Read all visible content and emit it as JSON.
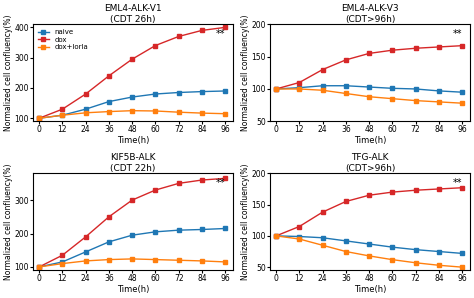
{
  "chart_data": [
    {
      "type": "line",
      "title": "EML4-ALK-V1\n(CDT 26h)",
      "x_label": "Time(h)",
      "y_label": "Normalized cell confluency(%)",
      "x": [
        0,
        12,
        24,
        36,
        48,
        60,
        72,
        84,
        96
      ],
      "xlim": [
        -3,
        100
      ],
      "xticks": [
        0,
        12,
        24,
        36,
        48,
        60,
        72,
        84,
        96
      ],
      "ylim": [
        90,
        410
      ],
      "yticks": [
        100,
        200,
        300,
        400
      ],
      "marker": "square",
      "line_style": "solid",
      "legend": "upper left",
      "series": [
        {
          "name": "naive",
          "color": "#1f77b4",
          "values": [
            100,
            110,
            130,
            155,
            170,
            180,
            185,
            188,
            190
          ],
          "error": [
            2.5,
            2.5,
            2.5,
            2.5,
            2.5,
            2.5,
            2.5,
            2.5,
            2.5
          ]
        },
        {
          "name": "dox",
          "color": "#d62728",
          "values": [
            100,
            130,
            180,
            240,
            295,
            340,
            370,
            390,
            400
          ],
          "error": [
            2.5,
            2.5,
            2.5,
            2.5,
            2.5,
            2.5,
            2.5,
            2.5,
            2.5
          ]
        },
        {
          "name": "dox+lorla",
          "color": "#ff7f0e",
          "values": [
            100,
            110,
            118,
            122,
            125,
            124,
            120,
            117,
            115
          ],
          "error": [
            2.5,
            2.5,
            2.5,
            2.5,
            2.5,
            2.5,
            2.5,
            2.5,
            2.5
          ]
        }
      ],
      "annotations": [
        {
          "text": "**",
          "x": 96,
          "y": 394
        }
      ]
    },
    {
      "type": "line",
      "title": "EML4-ALK-V3\n(CDT>96h)",
      "x_label": "Time(h)",
      "y_label": "Normalized cell confluency(%)",
      "x": [
        0,
        12,
        24,
        36,
        48,
        60,
        72,
        84,
        96
      ],
      "xlim": [
        -3,
        100
      ],
      "xticks": [
        0,
        12,
        24,
        36,
        48,
        60,
        72,
        84,
        96
      ],
      "ylim": [
        50,
        200
      ],
      "yticks": [
        50,
        100,
        150,
        200
      ],
      "marker": "square",
      "line_style": "solid",
      "series": [
        {
          "name": "naive",
          "color": "#1f77b4",
          "values": [
            100,
            102,
            105,
            105,
            103,
            101,
            100,
            97,
            95
          ],
          "error": [
            2.5,
            2.5,
            2.5,
            2.5,
            2.5,
            2.5,
            2.5,
            2.5,
            2.5
          ]
        },
        {
          "name": "dox",
          "color": "#d62728",
          "values": [
            100,
            110,
            130,
            145,
            155,
            160,
            163,
            165,
            167
          ],
          "error": [
            2.5,
            2.5,
            2.5,
            2.5,
            2.5,
            2.5,
            2.5,
            2.5,
            2.5
          ]
        },
        {
          "name": "dox+lorla",
          "color": "#ff7f0e",
          "values": [
            100,
            100,
            98,
            93,
            88,
            85,
            82,
            80,
            78
          ],
          "error": [
            2.5,
            2.5,
            2.5,
            2.5,
            2.5,
            2.5,
            2.5,
            2.5,
            2.5
          ]
        }
      ],
      "annotations": [
        {
          "text": "**",
          "x": 96,
          "y": 192.5
        }
      ]
    },
    {
      "type": "line",
      "title": "KIF5B-ALK\n(CDT 22h)",
      "x_label": "Time(h)",
      "y_label": "Normalized cell confluency(%)",
      "x": [
        0,
        12,
        24,
        36,
        48,
        60,
        72,
        84,
        96
      ],
      "xlim": [
        -3,
        100
      ],
      "xticks": [
        0,
        12,
        24,
        36,
        48,
        60,
        72,
        84,
        96
      ],
      "ylim": [
        90,
        380
      ],
      "yticks": [
        100,
        200,
        300
      ],
      "marker": "square",
      "line_style": "solid",
      "series": [
        {
          "name": "naive",
          "color": "#1f77b4",
          "values": [
            100,
            115,
            145,
            175,
            195,
            205,
            210,
            212,
            215
          ],
          "error": [
            2.5,
            2.5,
            2.5,
            2.5,
            2.5,
            2.5,
            2.5,
            2.5,
            2.5
          ]
        },
        {
          "name": "dox",
          "color": "#d62728",
          "values": [
            100,
            135,
            190,
            250,
            300,
            330,
            350,
            360,
            365
          ],
          "error": [
            2.5,
            2.5,
            2.5,
            2.5,
            2.5,
            2.5,
            2.5,
            2.5,
            2.5
          ]
        },
        {
          "name": "dox+lorla",
          "color": "#ff7f0e",
          "values": [
            100,
            110,
            118,
            122,
            124,
            122,
            120,
            118,
            115
          ],
          "error": [
            2.5,
            2.5,
            2.5,
            2.5,
            2.5,
            2.5,
            2.5,
            2.5,
            2.5
          ]
        }
      ],
      "annotations": [
        {
          "text": "**",
          "x": 96,
          "y": 365.5
        }
      ]
    },
    {
      "type": "line",
      "title": "TFG-ALK\n(CDT>96h)",
      "x_label": "Time(h)",
      "y_label": "Normalized cell confluency(%)",
      "x": [
        0,
        12,
        24,
        36,
        48,
        60,
        72,
        84,
        96
      ],
      "xlim": [
        -3,
        100
      ],
      "xticks": [
        0,
        12,
        24,
        36,
        48,
        60,
        72,
        84,
        96
      ],
      "ylim": [
        45,
        200
      ],
      "yticks": [
        50,
        100,
        150,
        200
      ],
      "marker": "square",
      "line_style": "solid",
      "series": [
        {
          "name": "naive",
          "color": "#1f77b4",
          "values": [
            100,
            99,
            97,
            92,
            87,
            82,
            78,
            75,
            72
          ],
          "error": [
            2.5,
            2.5,
            2.5,
            2.5,
            2.5,
            2.5,
            2.5,
            2.5,
            2.5
          ]
        },
        {
          "name": "dox",
          "color": "#d62728",
          "values": [
            100,
            115,
            138,
            155,
            165,
            170,
            173,
            175,
            177
          ],
          "error": [
            2.5,
            2.5,
            2.5,
            2.5,
            2.5,
            2.5,
            2.5,
            2.5,
            2.5
          ]
        },
        {
          "name": "dox+lorla",
          "color": "#ff7f0e",
          "values": [
            100,
            95,
            85,
            75,
            68,
            62,
            57,
            53,
            50
          ],
          "error": [
            2.5,
            2.5,
            2.5,
            2.5,
            2.5,
            2.5,
            2.5,
            2.5,
            2.5
          ]
        }
      ],
      "annotations": [
        {
          "text": "**",
          "x": 96,
          "y": 192.25
        }
      ]
    }
  ]
}
